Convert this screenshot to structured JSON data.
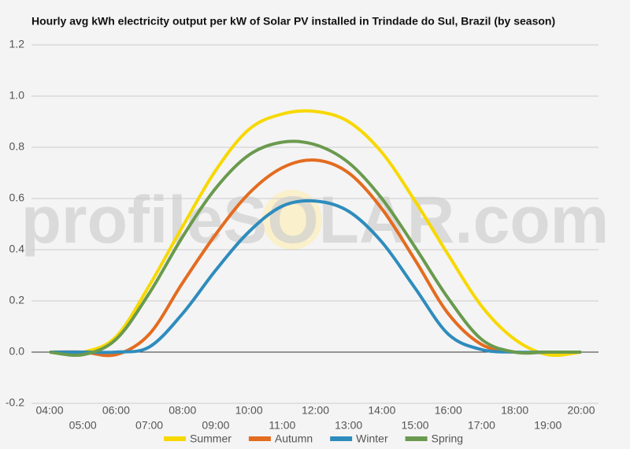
{
  "chart_data": {
    "type": "line",
    "title": "Hourly avg kWh electricity output per kW of Solar PV installed in Trindade do Sul, Brazil (by season)",
    "watermark": "profileSOLAR.com",
    "categories": [
      "04:00",
      "05:00",
      "06:00",
      "07:00",
      "08:00",
      "09:00",
      "10:00",
      "11:00",
      "12:00",
      "13:00",
      "14:00",
      "15:00",
      "16:00",
      "17:00",
      "18:00",
      "19:00",
      "20:00"
    ],
    "series": [
      {
        "name": "Summer",
        "color": "#f7d800",
        "values": [
          0,
          0,
          0.06,
          0.26,
          0.49,
          0.71,
          0.87,
          0.93,
          0.94,
          0.9,
          0.78,
          0.59,
          0.38,
          0.18,
          0.05,
          -0.01,
          0
        ]
      },
      {
        "name": "Autumn",
        "color": "#e36c20",
        "values": [
          0,
          0,
          -0.01,
          0.07,
          0.27,
          0.46,
          0.62,
          0.72,
          0.75,
          0.7,
          0.56,
          0.36,
          0.15,
          0.03,
          0,
          0,
          0
        ]
      },
      {
        "name": "Winter",
        "color": "#2e8cbd",
        "values": [
          0,
          0,
          0,
          0.02,
          0.15,
          0.32,
          0.47,
          0.57,
          0.59,
          0.55,
          0.43,
          0.25,
          0.07,
          0.01,
          0,
          0,
          0
        ]
      },
      {
        "name": "Spring",
        "color": "#6a9a4e",
        "values": [
          0,
          -0.01,
          0.05,
          0.23,
          0.45,
          0.64,
          0.77,
          0.82,
          0.81,
          0.74,
          0.6,
          0.41,
          0.21,
          0.05,
          0,
          0,
          0
        ]
      }
    ],
    "ylim": [
      -0.2,
      1.2
    ],
    "yticks": [
      -0.2,
      {
        "value": 0,
        "label": "0.0"
      },
      0.2,
      0.4,
      0.6,
      0.8,
      {
        "value": 1,
        "label": "1.0"
      },
      1.2
    ],
    "grid": true,
    "legend": "bottom"
  }
}
